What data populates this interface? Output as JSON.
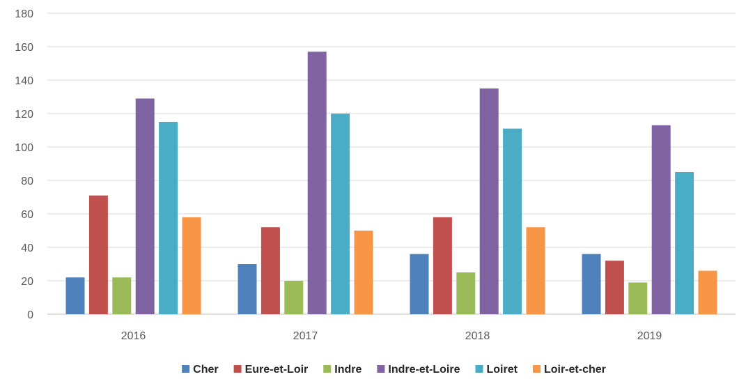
{
  "chart_data": {
    "type": "bar",
    "title": "",
    "xlabel": "",
    "ylabel": "",
    "categories": [
      "2016",
      "2017",
      "2018",
      "2019"
    ],
    "ylim": [
      0,
      180
    ],
    "yticks": [
      0,
      20,
      40,
      60,
      80,
      100,
      120,
      140,
      160,
      180
    ],
    "grid": true,
    "legend_position": "bottom",
    "series": [
      {
        "name": "Cher",
        "color": "#4F81BD",
        "values": [
          22,
          30,
          36,
          36
        ]
      },
      {
        "name": "Eure-et-Loir",
        "color": "#C0504D",
        "values": [
          71,
          52,
          58,
          32
        ]
      },
      {
        "name": "Indre",
        "color": "#9BBB59",
        "values": [
          22,
          20,
          25,
          19
        ]
      },
      {
        "name": "Indre-et-Loire",
        "color": "#8064A2",
        "values": [
          129,
          157,
          135,
          113
        ]
      },
      {
        "name": "Loiret",
        "color": "#4BACC6",
        "values": [
          115,
          120,
          111,
          85
        ]
      },
      {
        "name": "Loir-et-cher",
        "color": "#F79646",
        "values": [
          58,
          50,
          52,
          26
        ]
      }
    ]
  }
}
